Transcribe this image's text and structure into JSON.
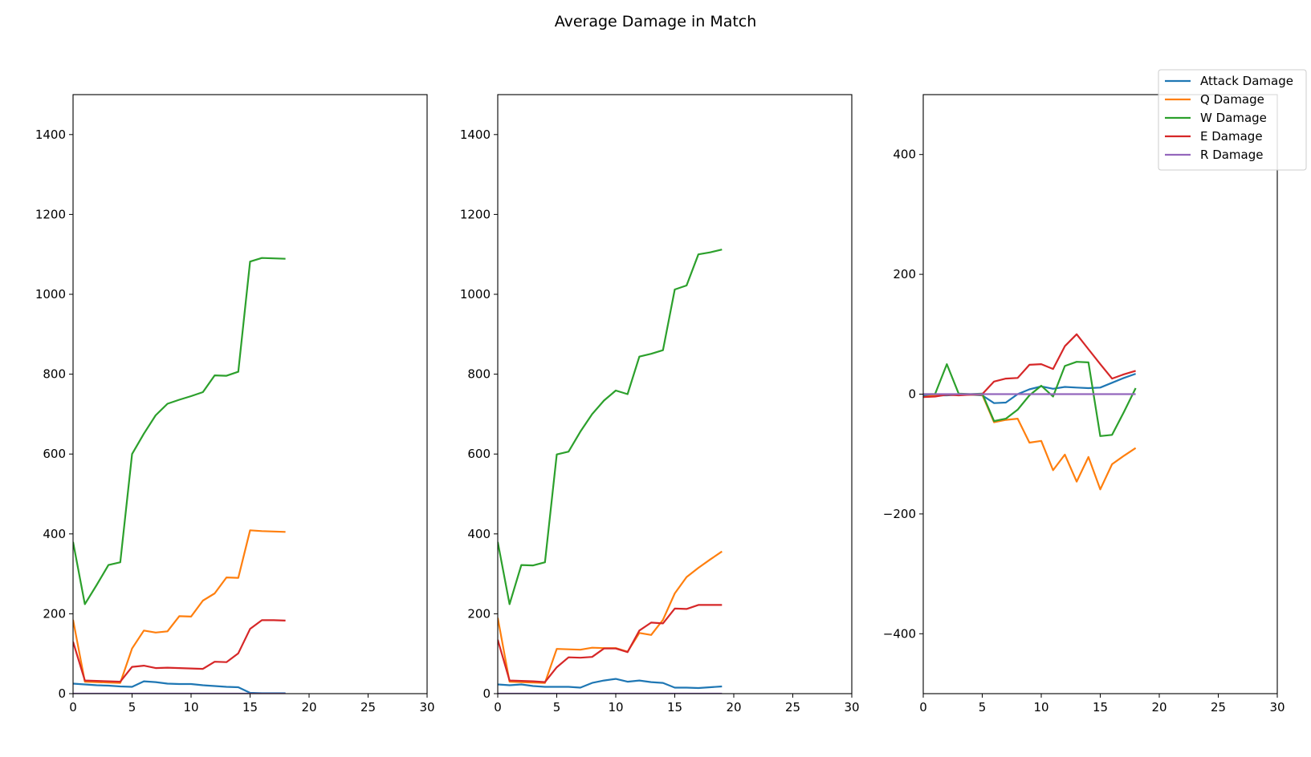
{
  "figure": {
    "title": "Average Damage in Match"
  },
  "chart_data": [
    {
      "type": "line",
      "title": "",
      "xlabel": "",
      "ylabel": "",
      "xlim": [
        0,
        30
      ],
      "ylim": [
        0,
        1500
      ],
      "xticks": [
        0,
        5,
        10,
        15,
        20,
        25,
        30
      ],
      "yticks": [
        0,
        200,
        400,
        600,
        800,
        1000,
        1200,
        1400
      ],
      "xtick_labels": [
        "0",
        "5",
        "10",
        "15",
        "20",
        "25",
        "30"
      ],
      "ytick_labels": [
        "0",
        "200",
        "400",
        "600",
        "800",
        "1000",
        "1200",
        "1400"
      ],
      "x": [
        0,
        1,
        2,
        3,
        4,
        5,
        6,
        7,
        8,
        9,
        10,
        11,
        12,
        13,
        14,
        15,
        16,
        17,
        18
      ],
      "series": [
        {
          "name": "Attack Damage",
          "color": "#1f77b4",
          "values": [
            25,
            23,
            21,
            20,
            18,
            17,
            31,
            29,
            25,
            24,
            24,
            21,
            19,
            17,
            16,
            2,
            1,
            1,
            1
          ]
        },
        {
          "name": "Q Damage",
          "color": "#ff7f0e",
          "values": [
            185,
            30,
            29,
            28,
            27,
            113,
            158,
            153,
            156,
            194,
            193,
            233,
            251,
            291,
            290,
            409,
            407,
            406,
            405
          ]
        },
        {
          "name": "W Damage",
          "color": "#2ca02c",
          "values": [
            380,
            224,
            272,
            322,
            329,
            600,
            651,
            697,
            726,
            736,
            745,
            755,
            797,
            796,
            806,
            1082,
            1091,
            1090,
            1089
          ]
        },
        {
          "name": "E Damage",
          "color": "#d62728",
          "values": [
            130,
            33,
            32,
            31,
            30,
            67,
            70,
            64,
            65,
            64,
            63,
            62,
            80,
            79,
            101,
            162,
            184,
            184,
            183
          ]
        },
        {
          "name": "R Damage",
          "color": "#9467bd",
          "values": [
            0,
            0,
            0,
            0,
            0,
            0,
            0,
            0,
            0,
            0,
            0,
            0,
            0,
            0,
            0,
            0,
            0,
            0,
            0
          ]
        }
      ]
    },
    {
      "type": "line",
      "title": "",
      "xlabel": "",
      "ylabel": "",
      "xlim": [
        0,
        30
      ],
      "ylim": [
        0,
        1500
      ],
      "xticks": [
        0,
        5,
        10,
        15,
        20,
        25,
        30
      ],
      "yticks": [
        0,
        200,
        400,
        600,
        800,
        1000,
        1200,
        1400
      ],
      "xtick_labels": [
        "0",
        "5",
        "10",
        "15",
        "20",
        "25",
        "30"
      ],
      "ytick_labels": [
        "0",
        "200",
        "400",
        "600",
        "800",
        "1000",
        "1200",
        "1400"
      ],
      "x": [
        0,
        1,
        2,
        3,
        4,
        5,
        6,
        7,
        8,
        9,
        10,
        11,
        12,
        13,
        14,
        15,
        16,
        17,
        18,
        19
      ],
      "series": [
        {
          "name": "Attack Damage",
          "color": "#1f77b4",
          "values": [
            23,
            21,
            23,
            19,
            17,
            17,
            17,
            15,
            27,
            33,
            37,
            30,
            33,
            29,
            27,
            15,
            15,
            14,
            16,
            18
          ]
        },
        {
          "name": "Q Damage",
          "color": "#ff7f0e",
          "values": [
            190,
            30,
            29,
            28,
            27,
            112,
            111,
            110,
            115,
            114,
            114,
            105,
            152,
            147,
            185,
            251,
            292,
            315,
            336,
            356
          ]
        },
        {
          "name": "W Damage",
          "color": "#2ca02c",
          "values": [
            380,
            224,
            322,
            321,
            329,
            599,
            606,
            656,
            700,
            734,
            759,
            750,
            844,
            851,
            860,
            1012,
            1022,
            1100,
            1105,
            1112
          ]
        },
        {
          "name": "E Damage",
          "color": "#d62728",
          "values": [
            135,
            33,
            32,
            31,
            29,
            66,
            91,
            90,
            92,
            113,
            113,
            104,
            158,
            178,
            176,
            213,
            212,
            222,
            222,
            222
          ]
        },
        {
          "name": "R Damage",
          "color": "#9467bd",
          "values": [
            0,
            0,
            0,
            0,
            0,
            0,
            0,
            0,
            0,
            0,
            0,
            0,
            0,
            0,
            0,
            0,
            0,
            0,
            0,
            0
          ]
        }
      ]
    },
    {
      "type": "line",
      "title": "",
      "xlabel": "",
      "ylabel": "",
      "xlim": [
        0,
        30
      ],
      "ylim": [
        -500,
        500
      ],
      "xticks": [
        0,
        5,
        10,
        15,
        20,
        25,
        30
      ],
      "yticks": [
        -400,
        -200,
        0,
        200,
        400
      ],
      "xtick_labels": [
        "0",
        "5",
        "10",
        "15",
        "20",
        "25",
        "30"
      ],
      "ytick_labels": [
        "−400",
        "−200",
        "0",
        "200",
        "400"
      ],
      "x": [
        0,
        1,
        2,
        3,
        4,
        5,
        6,
        7,
        8,
        9,
        10,
        11,
        12,
        13,
        14,
        15,
        16,
        17,
        18
      ],
      "series": [
        {
          "name": "Attack Damage",
          "color": "#1f77b4",
          "values": [
            -2,
            -2,
            -2,
            -1,
            -1,
            -2,
            -15,
            -14,
            0,
            8,
            13,
            9,
            12,
            11,
            10,
            11,
            19,
            27,
            34
          ]
        },
        {
          "name": "Q Damage",
          "color": "#ff7f0e",
          "values": [
            -5,
            -2,
            -1,
            -1,
            -1,
            -1,
            -47,
            -43,
            -41,
            -81,
            -78,
            -127,
            -101,
            -146,
            -105,
            -159,
            -117,
            -103,
            -90
          ]
        },
        {
          "name": "W Damage",
          "color": "#2ca02c",
          "values": [
            0,
            0,
            50,
            1,
            0,
            1,
            -45,
            -41,
            -26,
            -2,
            14,
            -4,
            47,
            54,
            53,
            -70,
            -68,
            -30,
            10
          ]
        },
        {
          "name": "E Damage",
          "color": "#d62728",
          "values": [
            -5,
            -4,
            -1,
            -2,
            -1,
            0,
            21,
            26,
            27,
            49,
            50,
            42,
            80,
            100,
            75,
            50,
            26,
            33,
            39
          ]
        },
        {
          "name": "R Damage",
          "color": "#9467bd",
          "values": [
            0,
            0,
            0,
            0,
            0,
            0,
            0,
            0,
            0,
            0,
            0,
            0,
            0,
            0,
            0,
            0,
            0,
            0,
            0
          ]
        }
      ]
    }
  ],
  "legend": {
    "placement": "top-right",
    "entries": [
      {
        "label": "Attack Damage",
        "color": "#1f77b4"
      },
      {
        "label": "Q Damage",
        "color": "#ff7f0e"
      },
      {
        "label": "W Damage",
        "color": "#2ca02c"
      },
      {
        "label": "E Damage",
        "color": "#d62728"
      },
      {
        "label": "R Damage",
        "color": "#9467bd"
      }
    ]
  }
}
